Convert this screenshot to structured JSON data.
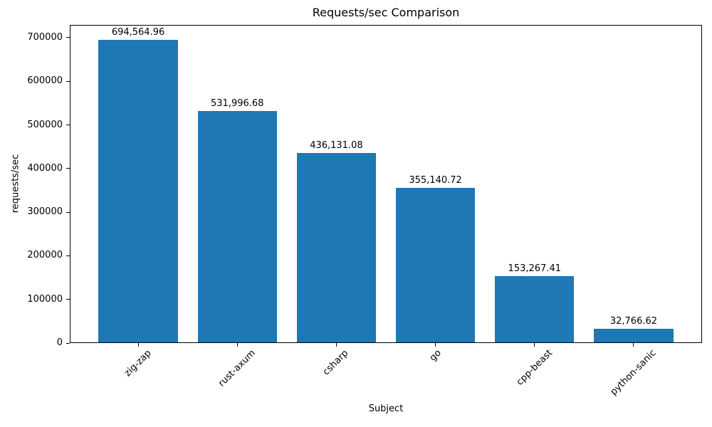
{
  "chart_data": {
    "type": "bar",
    "title": "Requests/sec Comparison",
    "xlabel": "Subject",
    "ylabel": "requests/sec",
    "categories": [
      "zig-zap",
      "rust-axum",
      "csharp",
      "go",
      "cpp-beast",
      "python-sanic"
    ],
    "values": [
      694564.96,
      531996.68,
      436131.08,
      355140.72,
      153267.41,
      32766.62
    ],
    "value_labels": [
      "694,564.96",
      "531,996.68",
      "436,131.08",
      "355,140.72",
      "153,267.41",
      "32,766.62"
    ],
    "ylim": [
      0,
      729293
    ],
    "yticks": [
      0,
      100000,
      200000,
      300000,
      400000,
      500000,
      600000,
      700000
    ],
    "ytick_labels": [
      "0",
      "100000",
      "200000",
      "300000",
      "400000",
      "500000",
      "600000",
      "700000"
    ],
    "xtick_rotation": 45,
    "bar_color": "#1f77b4",
    "background_color": "#ffffff",
    "text_color": "#000000",
    "grid": false,
    "legend": null,
    "bar_relative_width": 0.8
  }
}
